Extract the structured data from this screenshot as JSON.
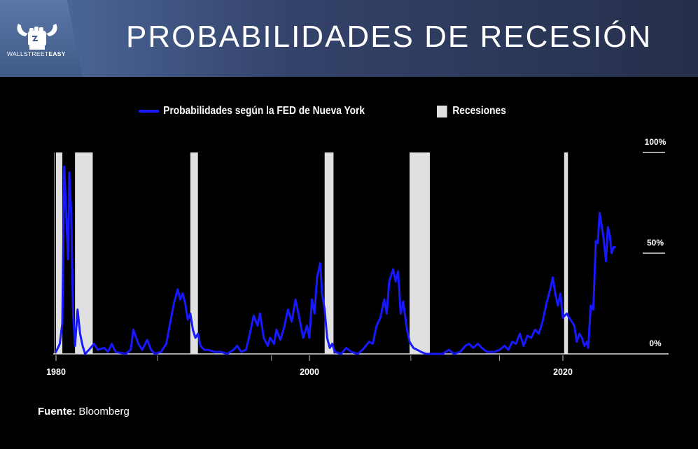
{
  "header": {
    "title": "PROBABILIDADES DE RECESIÓN",
    "brand_regular": "WALLSTREET",
    "brand_bold": "EASY"
  },
  "source": {
    "label": "Fuente:",
    "value": "Bloomberg"
  },
  "colors": {
    "line": "#1818ff",
    "recession": "#e0e0e0",
    "background": "#000000"
  },
  "chart_data": {
    "type": "line",
    "legend": {
      "line_label": "Probabilidades según la FED de Nueva York",
      "recession_label": "Recesiones",
      "placement": "top-center"
    },
    "x_tick_labels": [
      "1980",
      "2000",
      "2020"
    ],
    "x_minor_ticks": [
      1988,
      1997,
      2008,
      2015
    ],
    "x_range": [
      1980,
      2027
    ],
    "y_tick_labels": [
      "100%",
      "50%",
      "0%"
    ],
    "y_ticks": [
      100,
      50,
      0
    ],
    "ylim": [
      0,
      100
    ],
    "grid": false,
    "recessions": [
      [
        1980.0,
        1980.5
      ],
      [
        1981.5,
        1982.9
      ],
      [
        1990.6,
        1991.2
      ],
      [
        2001.2,
        2001.9
      ],
      [
        2007.9,
        2009.5
      ],
      [
        2020.1,
        2020.4
      ]
    ],
    "series": [
      {
        "name": "Probabilidades según la FED de Nueva York",
        "points": [
          [
            1980.0,
            1
          ],
          [
            1980.3,
            5
          ],
          [
            1980.5,
            15
          ],
          [
            1980.65,
            93
          ],
          [
            1980.8,
            70
          ],
          [
            1980.95,
            47
          ],
          [
            1981.05,
            90
          ],
          [
            1981.2,
            70
          ],
          [
            1981.35,
            20
          ],
          [
            1981.5,
            4
          ],
          [
            1981.7,
            22
          ],
          [
            1981.9,
            10
          ],
          [
            1982.1,
            4
          ],
          [
            1982.3,
            0
          ],
          [
            1982.6,
            2
          ],
          [
            1983.0,
            5
          ],
          [
            1983.3,
            2
          ],
          [
            1983.8,
            3
          ],
          [
            1984.1,
            1
          ],
          [
            1984.4,
            5
          ],
          [
            1984.7,
            1
          ],
          [
            1985.5,
            0
          ],
          [
            1985.9,
            2
          ],
          [
            1986.1,
            12
          ],
          [
            1986.5,
            5
          ],
          [
            1986.8,
            2
          ],
          [
            1987.2,
            7
          ],
          [
            1987.5,
            2
          ],
          [
            1987.8,
            0
          ],
          [
            1988.3,
            1
          ],
          [
            1988.7,
            5
          ],
          [
            1989.0,
            15
          ],
          [
            1989.3,
            25
          ],
          [
            1989.6,
            32
          ],
          [
            1989.8,
            27
          ],
          [
            1990.0,
            30
          ],
          [
            1990.2,
            25
          ],
          [
            1990.4,
            17
          ],
          [
            1990.6,
            20
          ],
          [
            1990.8,
            12
          ],
          [
            1991.0,
            8
          ],
          [
            1991.2,
            10
          ],
          [
            1991.4,
            4
          ],
          [
            1991.7,
            2
          ],
          [
            1992.0,
            2
          ],
          [
            1992.5,
            1
          ],
          [
            1993.0,
            1
          ],
          [
            1993.5,
            0
          ],
          [
            1994.0,
            2
          ],
          [
            1994.3,
            4
          ],
          [
            1994.6,
            1
          ],
          [
            1995.0,
            2
          ],
          [
            1995.3,
            10
          ],
          [
            1995.6,
            19
          ],
          [
            1995.9,
            14
          ],
          [
            1996.1,
            20
          ],
          [
            1996.4,
            8
          ],
          [
            1996.7,
            4
          ],
          [
            1996.9,
            8
          ],
          [
            1997.2,
            5
          ],
          [
            1997.4,
            12
          ],
          [
            1997.7,
            7
          ],
          [
            1998.0,
            13
          ],
          [
            1998.3,
            22
          ],
          [
            1998.6,
            16
          ],
          [
            1998.9,
            27
          ],
          [
            1999.2,
            18
          ],
          [
            1999.5,
            8
          ],
          [
            1999.8,
            14
          ],
          [
            2000.0,
            8
          ],
          [
            2000.2,
            27
          ],
          [
            2000.4,
            20
          ],
          [
            2000.6,
            38
          ],
          [
            2000.85,
            45
          ],
          [
            2001.0,
            30
          ],
          [
            2001.2,
            22
          ],
          [
            2001.4,
            8
          ],
          [
            2001.6,
            3
          ],
          [
            2001.8,
            5
          ],
          [
            2002.0,
            1
          ],
          [
            2002.5,
            0
          ],
          [
            2002.9,
            3
          ],
          [
            2003.3,
            1
          ],
          [
            2003.8,
            0
          ],
          [
            2004.2,
            2
          ],
          [
            2004.7,
            6
          ],
          [
            2005.0,
            5
          ],
          [
            2005.3,
            14
          ],
          [
            2005.6,
            18
          ],
          [
            2005.9,
            27
          ],
          [
            2006.1,
            20
          ],
          [
            2006.3,
            36
          ],
          [
            2006.6,
            42
          ],
          [
            2006.8,
            36
          ],
          [
            2007.0,
            41
          ],
          [
            2007.2,
            20
          ],
          [
            2007.4,
            26
          ],
          [
            2007.7,
            12
          ],
          [
            2007.9,
            6
          ],
          [
            2008.2,
            3
          ],
          [
            2008.5,
            2
          ],
          [
            2008.8,
            1
          ],
          [
            2009.2,
            0
          ],
          [
            2009.8,
            0
          ],
          [
            2010.5,
            0
          ],
          [
            2011.0,
            2
          ],
          [
            2011.4,
            0
          ],
          [
            2011.9,
            1
          ],
          [
            2012.3,
            4
          ],
          [
            2012.6,
            5
          ],
          [
            2012.9,
            3
          ],
          [
            2013.3,
            5
          ],
          [
            2013.6,
            3
          ],
          [
            2014.0,
            1
          ],
          [
            2014.6,
            1
          ],
          [
            2015.0,
            2
          ],
          [
            2015.4,
            4
          ],
          [
            2015.7,
            2
          ],
          [
            2016.0,
            6
          ],
          [
            2016.3,
            5
          ],
          [
            2016.6,
            10
          ],
          [
            2016.9,
            4
          ],
          [
            2017.2,
            9
          ],
          [
            2017.5,
            8
          ],
          [
            2017.8,
            12
          ],
          [
            2018.1,
            10
          ],
          [
            2018.4,
            16
          ],
          [
            2018.7,
            25
          ],
          [
            2019.0,
            32
          ],
          [
            2019.2,
            38
          ],
          [
            2019.4,
            30
          ],
          [
            2019.6,
            24
          ],
          [
            2019.8,
            30
          ],
          [
            2020.0,
            18
          ],
          [
            2020.3,
            20
          ],
          [
            2020.6,
            17
          ],
          [
            2020.9,
            14
          ],
          [
            2021.1,
            6
          ],
          [
            2021.3,
            10
          ],
          [
            2021.5,
            8
          ],
          [
            2021.7,
            4
          ],
          [
            2021.9,
            6
          ],
          [
            2022.0,
            3
          ],
          [
            2022.2,
            24
          ],
          [
            2022.4,
            22
          ],
          [
            2022.6,
            56
          ],
          [
            2022.75,
            55
          ],
          [
            2022.9,
            70
          ],
          [
            2023.0,
            66
          ],
          [
            2023.2,
            58
          ],
          [
            2023.4,
            46
          ],
          [
            2023.55,
            63
          ],
          [
            2023.7,
            59
          ],
          [
            2023.85,
            50
          ],
          [
            2024.0,
            53
          ],
          [
            2024.1,
            53
          ]
        ]
      }
    ]
  }
}
